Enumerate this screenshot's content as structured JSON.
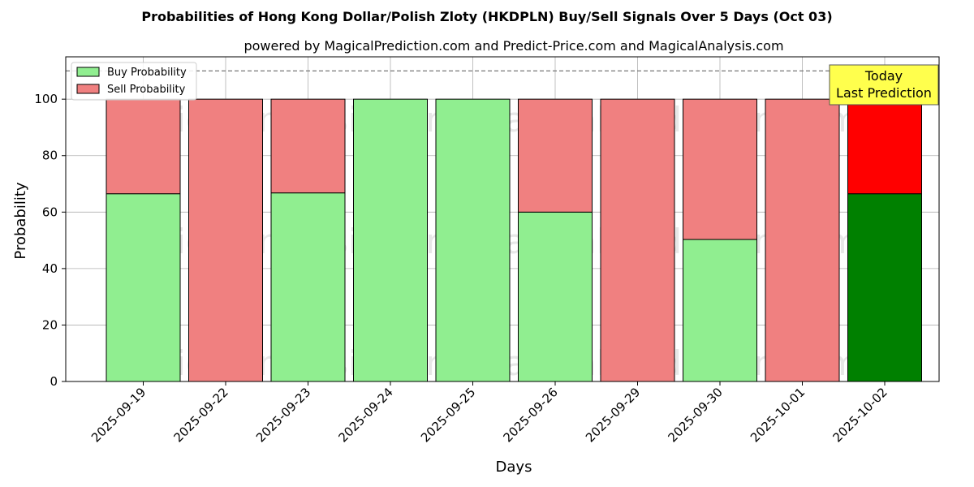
{
  "title": "Probabilities of Hong Kong Dollar/Polish Zloty (HKDPLN) Buy/Sell Signals Over 5 Days (Oct 03)",
  "subtitle": "powered by MagicalPrediction.com and Predict-Price.com and MagicalAnalysis.com",
  "watermarks": [
    "MagicalAnalysis.com",
    "MagicalPrediction.com"
  ],
  "annotation": {
    "line1": "Today",
    "line2": "Last Prediction"
  },
  "colors": {
    "buy": "#90ee90",
    "sell": "#f08080",
    "buy_today": "#008000",
    "sell_today": "#ff0000",
    "annotation_bg": "#ffff4d"
  },
  "chart_data": {
    "type": "bar",
    "stacked": true,
    "xlabel": "Days",
    "ylabel": "Probability",
    "ylim": [
      0,
      115
    ],
    "yticks": [
      0,
      20,
      40,
      60,
      80,
      100
    ],
    "reference_line": 110,
    "grid": true,
    "legend_position": "top-left",
    "categories": [
      "2025-09-19",
      "2025-09-22",
      "2025-09-23",
      "2025-09-24",
      "2025-09-25",
      "2025-09-26",
      "2025-09-29",
      "2025-09-30",
      "2025-10-01",
      "2025-10-02"
    ],
    "series": [
      {
        "name": "Buy Probability",
        "values": [
          66.5,
          0,
          66.8,
          100,
          100,
          60,
          0,
          50.3,
          0,
          66.5
        ]
      },
      {
        "name": "Sell Probability",
        "values": [
          33.5,
          100,
          33.2,
          0,
          0,
          40,
          100,
          49.7,
          100,
          33.5
        ]
      }
    ],
    "highlight_index": 9
  }
}
